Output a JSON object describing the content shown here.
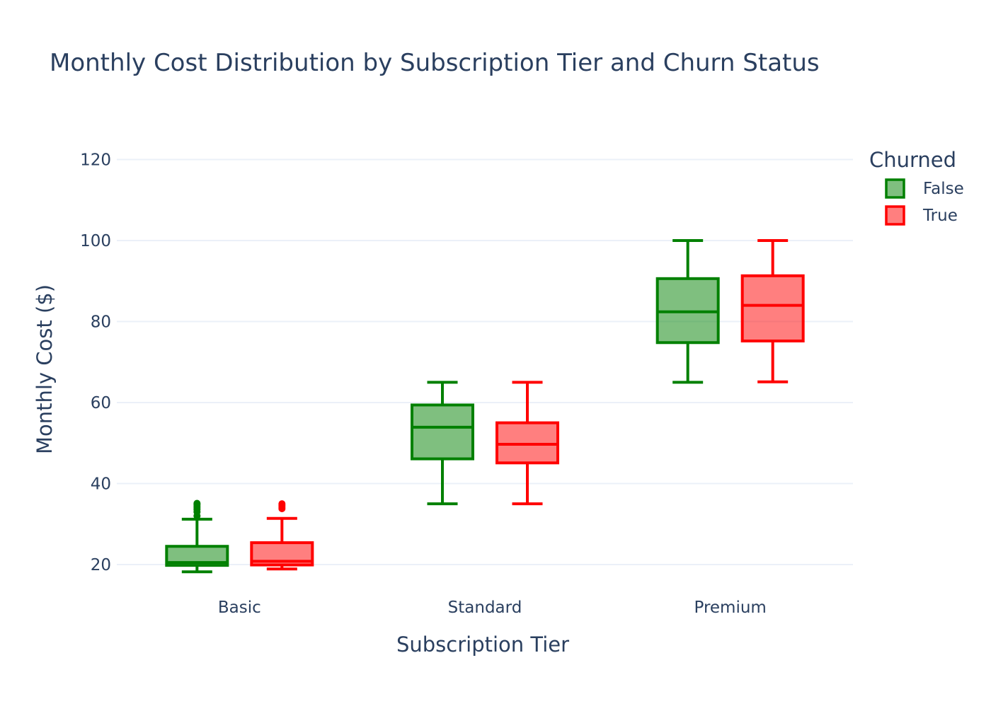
{
  "chart_data": {
    "type": "box",
    "title": "Monthly Cost Distribution by Subscription Tier and Churn Status",
    "xlabel": "Subscription Tier",
    "ylabel": "Monthly Cost ($)",
    "categories": [
      "Basic",
      "Standard",
      "Premium"
    ],
    "ylim": [
      13,
      125
    ],
    "yticks": [
      20,
      40,
      60,
      80,
      100,
      120
    ],
    "grid": true,
    "legend": {
      "title": "Churned",
      "position": "top-right"
    },
    "series": [
      {
        "name": "False",
        "color": "#008000",
        "fill": "rgba(0,128,0,0.5)",
        "boxes": [
          {
            "category": "Basic",
            "min": 18.2,
            "q1": 19.8,
            "median": 20.5,
            "q3": 24.5,
            "max": 31.2,
            "outliers": [
              32,
              33,
              33.6,
              34,
              34.4,
              34.8,
              35.1
            ]
          },
          {
            "category": "Standard",
            "min": 35.0,
            "q1": 46.1,
            "median": 53.9,
            "q3": 59.4,
            "max": 65.0,
            "outliers": []
          },
          {
            "category": "Premium",
            "min": 65.0,
            "q1": 74.8,
            "median": 82.4,
            "q3": 90.6,
            "max": 100.0,
            "outliers": []
          }
        ]
      },
      {
        "name": "True",
        "color": "#ff0000",
        "fill": "rgba(255,0,0,0.5)",
        "boxes": [
          {
            "category": "Basic",
            "min": 18.9,
            "q1": 19.9,
            "median": 20.8,
            "q3": 25.4,
            "max": 31.4,
            "outliers": [
              33.8,
              34.2,
              34.6,
              35.0
            ]
          },
          {
            "category": "Standard",
            "min": 35.0,
            "q1": 45.1,
            "median": 49.7,
            "q3": 55.0,
            "max": 65.0,
            "outliers": []
          },
          {
            "category": "Premium",
            "min": 65.1,
            "q1": 75.2,
            "median": 84.0,
            "q3": 91.3,
            "max": 100.0,
            "outliers": []
          }
        ]
      }
    ]
  }
}
